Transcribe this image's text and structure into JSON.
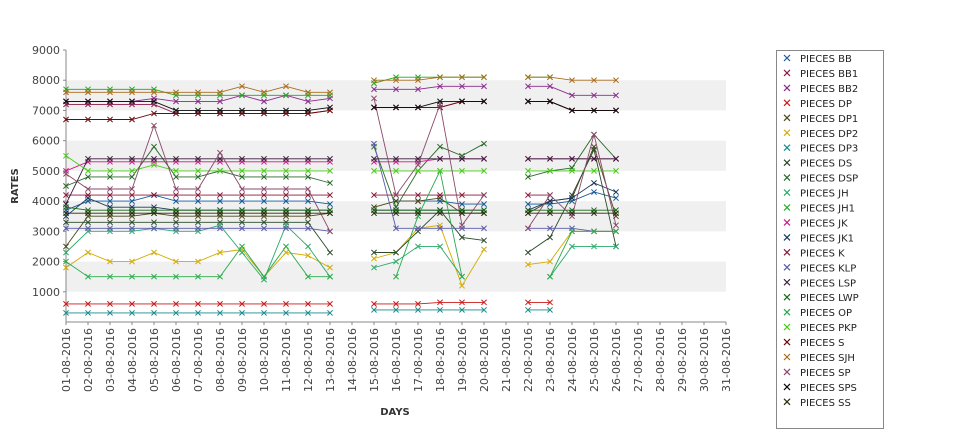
{
  "chart_data": {
    "type": "line",
    "xlabel": "DAYS",
    "ylabel": "RATES",
    "ylim": [
      0,
      9000
    ],
    "yticks": [
      1000,
      2000,
      3000,
      4000,
      5000,
      6000,
      7000,
      8000,
      9000
    ],
    "grid": "alternating horizontal bands",
    "legend_position": "right",
    "x": [
      "01-08-2016",
      "02-08-2016",
      "03-08-2016",
      "04-08-2016",
      "05-08-2016",
      "06-08-2016",
      "07-08-2016",
      "08-08-2016",
      "09-08-2016",
      "10-08-2016",
      "11-08-2016",
      "12-08-2016",
      "13-08-2016",
      "14-08-2016",
      "15-08-2016",
      "16-08-2016",
      "17-08-2016",
      "18-08-2016",
      "19-08-2016",
      "20-08-2016",
      "21-08-2016",
      "22-08-2016",
      "23-08-2016",
      "24-08-2016",
      "25-08-2016",
      "26-08-2016",
      "27-08-2016",
      "28-08-2016",
      "29-08-2016",
      "30-08-2016",
      "31-08-2016"
    ],
    "series": [
      {
        "name": "PIECES BB",
        "color": "#1a5a9a",
        "values": [
          3700,
          4000,
          4000,
          4000,
          4200,
          4000,
          4000,
          4000,
          4000,
          4000,
          4000,
          4000,
          3900,
          null,
          null,
          4000,
          4000,
          4000,
          3900,
          3900,
          null,
          3900,
          3900,
          4000,
          4300,
          4100,
          null,
          null,
          null,
          null,
          null
        ]
      },
      {
        "name": "PIECES BB1",
        "color": "#8b1a4a",
        "values": [
          7200,
          7200,
          7200,
          7200,
          7200,
          6900,
          6900,
          6900,
          6900,
          6900,
          6900,
          6900,
          7000,
          null,
          7100,
          7100,
          7100,
          7100,
          7300,
          7300,
          null,
          7300,
          7300,
          7000,
          7000,
          7000,
          null,
          null,
          null,
          null,
          null
        ]
      },
      {
        "name": "PIECES BB2",
        "color": "#8a2a8a",
        "values": [
          7300,
          7300,
          7300,
          7300,
          7400,
          7300,
          7300,
          7300,
          7500,
          7300,
          7500,
          7300,
          7400,
          null,
          7700,
          7700,
          7700,
          7800,
          7800,
          7800,
          null,
          7800,
          7800,
          7500,
          7500,
          7500,
          null,
          null,
          null,
          null,
          null
        ]
      },
      {
        "name": "PIECES DP",
        "color": "#cc1a1a",
        "values": [
          600,
          600,
          600,
          600,
          600,
          600,
          600,
          600,
          600,
          600,
          600,
          600,
          600,
          null,
          600,
          600,
          600,
          650,
          650,
          650,
          null,
          650,
          650,
          null,
          null,
          null,
          null,
          null,
          null,
          null,
          null
        ]
      },
      {
        "name": "PIECES DP1",
        "color": "#4a4a1a",
        "values": [
          2500,
          3500,
          3500,
          3500,
          3600,
          3500,
          3500,
          3500,
          3500,
          3500,
          3500,
          3500,
          3600,
          null,
          3800,
          4000,
          4000,
          4100,
          3600,
          3600,
          null,
          3600,
          4000,
          4100,
          5800,
          3500,
          null,
          null,
          null,
          null,
          null
        ]
      },
      {
        "name": "PIECES DP2",
        "color": "#d4aa00",
        "values": [
          1800,
          2300,
          2000,
          2000,
          2300,
          2000,
          2000,
          2300,
          2400,
          1500,
          2300,
          2200,
          1800,
          null,
          2100,
          2300,
          3100,
          3200,
          1200,
          2400,
          null,
          1900,
          2000,
          3000,
          3000,
          3000,
          null,
          null,
          null,
          null,
          null
        ]
      },
      {
        "name": "PIECES DP3",
        "color": "#1a8a8a",
        "values": [
          300,
          300,
          300,
          300,
          300,
          300,
          300,
          300,
          300,
          300,
          300,
          300,
          300,
          null,
          400,
          400,
          400,
          400,
          400,
          400,
          null,
          400,
          400,
          null,
          null,
          null,
          null,
          null,
          null,
          null,
          null
        ]
      },
      {
        "name": "PIECES DS",
        "color": "#2a4a2a",
        "values": [
          3300,
          3300,
          3300,
          3300,
          3300,
          3300,
          3300,
          3300,
          3300,
          3300,
          3300,
          3300,
          2300,
          null,
          2300,
          2300,
          3000,
          3700,
          2800,
          2700,
          null,
          2300,
          2800,
          4200,
          5700,
          2500,
          null,
          null,
          null,
          null,
          null
        ]
      },
      {
        "name": "PIECES DSP",
        "color": "#2a6a2a",
        "values": [
          4500,
          4800,
          4800,
          4800,
          5800,
          4800,
          4800,
          5000,
          4800,
          4800,
          4800,
          4800,
          4600,
          null,
          5800,
          3800,
          5000,
          5800,
          5500,
          5900,
          null,
          4800,
          5000,
          5100,
          6200,
          5400,
          null,
          null,
          null,
          null,
          null
        ]
      },
      {
        "name": "PIECES JH",
        "color": "#2aaa6a",
        "values": [
          2300,
          3000,
          3000,
          3000,
          3100,
          3000,
          3000,
          3200,
          2300,
          1400,
          3200,
          2500,
          1500,
          null,
          1800,
          2000,
          2500,
          2500,
          1500,
          null,
          null,
          null,
          1500,
          2500,
          2500,
          2500,
          null,
          null,
          null,
          null,
          null
        ]
      },
      {
        "name": "PIECES JH1",
        "color": "#1aaa1a",
        "values": [
          7700,
          7700,
          7700,
          7700,
          7700,
          7500,
          7500,
          7500,
          7500,
          7500,
          7500,
          7500,
          7500,
          null,
          7900,
          8100,
          8100,
          8100,
          8100,
          8100,
          null,
          8100,
          8100,
          null,
          null,
          null,
          null,
          null,
          null,
          null,
          null
        ]
      },
      {
        "name": "PIECES JK",
        "color": "#cc1a8a",
        "values": [
          5000,
          5300,
          5300,
          5300,
          5300,
          5300,
          5300,
          5300,
          5300,
          5300,
          5300,
          5300,
          5300,
          null,
          5300,
          5300,
          5300,
          5400,
          5400,
          5400,
          null,
          5400,
          5400,
          5400,
          5400,
          5400,
          null,
          null,
          null,
          null,
          null
        ]
      },
      {
        "name": "PIECES JK1",
        "color": "#1a3a5a",
        "values": [
          3500,
          4100,
          3800,
          3800,
          3800,
          3700,
          3700,
          3700,
          3700,
          3700,
          3700,
          3700,
          3700,
          null,
          3700,
          3700,
          3700,
          3700,
          3700,
          3700,
          null,
          3700,
          4000,
          4100,
          4600,
          4300,
          null,
          null,
          null,
          null,
          null
        ]
      },
      {
        "name": "PIECES K",
        "color": "#8a1a3a",
        "values": [
          4200,
          4200,
          4200,
          4200,
          4200,
          4200,
          4200,
          4200,
          4200,
          4200,
          4200,
          4200,
          4200,
          null,
          4200,
          4200,
          4200,
          4200,
          4200,
          4200,
          null,
          4200,
          4200,
          null,
          null,
          null,
          null,
          null,
          null,
          null,
          null
        ]
      },
      {
        "name": "PIECES KLP",
        "color": "#5a5aaa",
        "values": [
          3100,
          3100,
          3100,
          3100,
          3100,
          3100,
          3100,
          3100,
          3100,
          3100,
          3100,
          3100,
          3000,
          null,
          5900,
          3100,
          3100,
          3100,
          3100,
          3100,
          null,
          3100,
          3100,
          3100,
          3000,
          3000,
          null,
          null,
          null,
          null,
          null
        ]
      },
      {
        "name": "PIECES LSP",
        "color": "#3a1a3a",
        "values": [
          3900,
          5400,
          5400,
          5400,
          5400,
          5400,
          5400,
          5400,
          5400,
          5400,
          5400,
          5400,
          5400,
          null,
          5400,
          5400,
          5400,
          5400,
          5400,
          5400,
          null,
          5400,
          5400,
          5400,
          5400,
          5400,
          null,
          null,
          null,
          null,
          null
        ]
      },
      {
        "name": "PIECES LWP",
        "color": "#1a6a1a",
        "values": [
          3800,
          3700,
          3700,
          3700,
          3700,
          3700,
          3700,
          3700,
          3700,
          3700,
          3700,
          3700,
          3700,
          null,
          3700,
          3700,
          3700,
          3700,
          3700,
          3700,
          null,
          3700,
          3700,
          3700,
          3700,
          3700,
          null,
          null,
          null,
          null,
          null
        ]
      },
      {
        "name": "PIECES OP",
        "color": "#2aaa4a",
        "values": [
          2000,
          1500,
          1500,
          1500,
          1500,
          1500,
          1500,
          1500,
          2500,
          1500,
          2500,
          1500,
          1500,
          null,
          null,
          1500,
          3500,
          5000,
          1500,
          null,
          null,
          null,
          1500,
          3000,
          3000,
          3000,
          null,
          null,
          null,
          null,
          null
        ]
      },
      {
        "name": "PIECES PKP",
        "color": "#4acc1a",
        "values": [
          5500,
          5000,
          5000,
          5000,
          5200,
          5000,
          5000,
          5000,
          5000,
          5000,
          5000,
          5000,
          5000,
          null,
          5000,
          5000,
          5000,
          5000,
          5000,
          5000,
          null,
          5000,
          5000,
          5000,
          5000,
          5000,
          null,
          null,
          null,
          null,
          null
        ]
      },
      {
        "name": "PIECES S",
        "color": "#6a0a0a",
        "values": [
          6700,
          6700,
          6700,
          6700,
          6900,
          6900,
          6900,
          6900,
          6900,
          6900,
          6900,
          6900,
          7000,
          null,
          7100,
          7100,
          7100,
          7100,
          7300,
          7300,
          null,
          7300,
          7300,
          7000,
          7000,
          7000,
          null,
          null,
          null,
          null,
          null
        ]
      },
      {
        "name": "PIECES SJH",
        "color": "#aa6a1a",
        "values": [
          7600,
          7600,
          7600,
          7600,
          7600,
          7600,
          7600,
          7600,
          7800,
          7600,
          7800,
          7600,
          7600,
          null,
          8000,
          8000,
          8000,
          8100,
          8100,
          8100,
          null,
          8100,
          8100,
          8000,
          8000,
          8000,
          null,
          null,
          null,
          null,
          null
        ]
      },
      {
        "name": "PIECES SP",
        "color": "#8a4a6a",
        "values": [
          4900,
          4400,
          4400,
          4400,
          6500,
          4400,
          4400,
          5600,
          4400,
          4400,
          4400,
          4400,
          3000,
          null,
          7400,
          4200,
          5200,
          7200,
          3200,
          4200,
          null,
          3100,
          4200,
          3500,
          6200,
          3200,
          null,
          null,
          null,
          null,
          null
        ]
      },
      {
        "name": "PIECES SPS",
        "color": "#0a0a0a",
        "values": [
          7300,
          7300,
          7300,
          7300,
          7300,
          7000,
          7000,
          7000,
          7000,
          7000,
          7000,
          7000,
          7100,
          null,
          7100,
          7100,
          7100,
          7300,
          7300,
          7300,
          null,
          7300,
          7300,
          7000,
          7000,
          7000,
          null,
          null,
          null,
          null,
          null
        ]
      },
      {
        "name": "PIECES SS",
        "color": "#2a2a0a",
        "values": [
          3600,
          3600,
          3600,
          3600,
          3600,
          3600,
          3600,
          3600,
          3600,
          3600,
          3600,
          3600,
          3600,
          null,
          3600,
          3600,
          3600,
          3600,
          3600,
          3600,
          null,
          3600,
          3600,
          3600,
          3600,
          3600,
          null,
          null,
          null,
          null,
          null
        ]
      }
    ]
  }
}
